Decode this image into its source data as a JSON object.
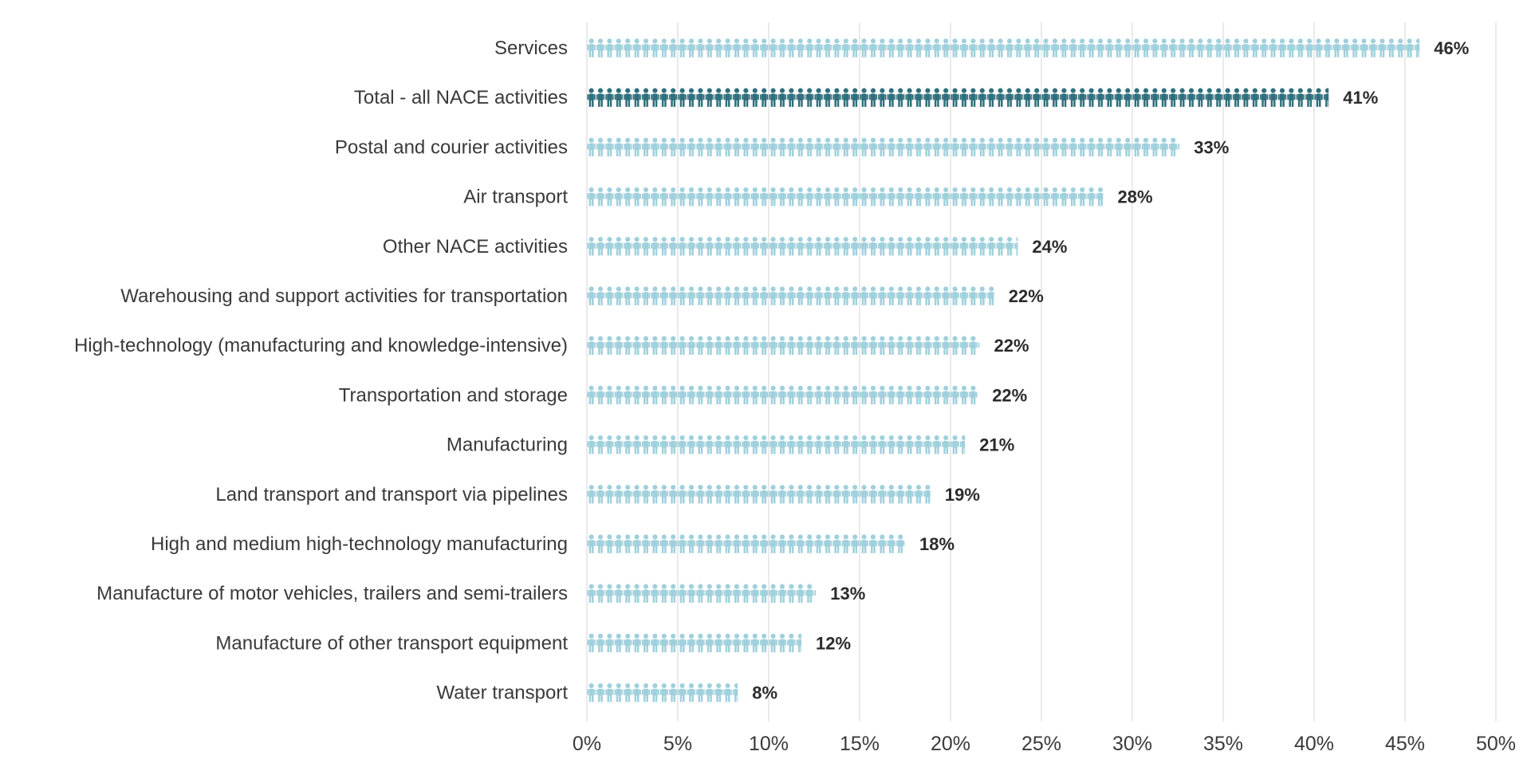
{
  "chart_data": {
    "type": "bar",
    "style": "pictogram",
    "icon": "person-icon",
    "title": "",
    "xlabel": "",
    "ylabel": "",
    "orientation": "horizontal",
    "xlim": [
      0,
      50
    ],
    "xticks": [
      0,
      5,
      10,
      15,
      20,
      25,
      30,
      35,
      40,
      45,
      50
    ],
    "xtick_labels": [
      "0%",
      "5%",
      "10%",
      "15%",
      "20%",
      "25%",
      "30%",
      "35%",
      "40%",
      "45%",
      "50%"
    ],
    "grid": "vertical",
    "value_suffix": "%",
    "categories": [
      "Services",
      "Total - all NACE activities",
      "Postal and courier activities",
      "Air transport",
      "Other NACE activities",
      "Warehousing and support activities for transportation",
      "High-technology (manufacturing and knowledge-intensive)",
      "Transportation and storage",
      "Manufacturing",
      "Land transport and transport via pipelines",
      "High and medium high-technology manufacturing",
      "Manufacture of motor vehicles, trailers and semi-trailers",
      "Manufacture of other transport equipment",
      "Water transport"
    ],
    "values": [
      45.8,
      40.8,
      32.6,
      28.4,
      23.7,
      22.4,
      21.6,
      21.5,
      20.8,
      18.9,
      17.5,
      12.6,
      11.8,
      8.3
    ],
    "value_labels": [
      "46%",
      "41%",
      "33%",
      "28%",
      "24%",
      "22%",
      "22%",
      "22%",
      "21%",
      "19%",
      "18%",
      "13%",
      "12%",
      "8%"
    ],
    "highlight": "Total - all NACE activities",
    "colors": {
      "default": "#9fd0dc",
      "highlight": "#2f6f7c",
      "grid": "#e3e3e3",
      "text": "#3a3a3a",
      "value_text": "#2b2b2b"
    }
  }
}
